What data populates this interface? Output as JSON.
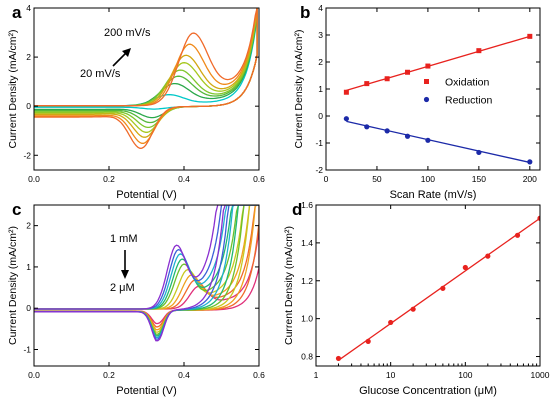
{
  "chart_data": [
    {
      "panel_label": "a",
      "type": "line",
      "xlabel": "Potential (V)",
      "ylabel": "Current Density (mA/cm²)",
      "xlim": [
        0.0,
        0.6
      ],
      "ylim": [
        -2.6,
        4.0
      ],
      "xticks": [
        "0.0",
        "0.2",
        "0.4",
        "0.6"
      ],
      "yticks": [
        "-2",
        "0",
        "2",
        "4"
      ],
      "annotations": {
        "top": "200 mV/s",
        "bottom": "20 mV/s"
      },
      "series": [
        {
          "color": "#00c8c8",
          "ox_peak": [
            0.36,
            0.45
          ],
          "red_peak": [
            0.32,
            -0.1
          ]
        },
        {
          "color": "#2aa84a",
          "ox_peak": [
            0.375,
            0.9
          ],
          "red_peak": [
            0.315,
            -0.45
          ]
        },
        {
          "color": "#55b83a",
          "ox_peak": [
            0.385,
            1.2
          ],
          "red_peak": [
            0.31,
            -0.65
          ]
        },
        {
          "color": "#7fc62a",
          "ox_peak": [
            0.39,
            1.45
          ],
          "red_peak": [
            0.305,
            -0.85
          ]
        },
        {
          "color": "#a6c81e",
          "ox_peak": [
            0.4,
            1.75
          ],
          "red_peak": [
            0.3,
            -1.05
          ]
        },
        {
          "color": "#d1a812",
          "ox_peak": [
            0.405,
            2.05
          ],
          "red_peak": [
            0.295,
            -1.25
          ]
        },
        {
          "color": "#f08a1a",
          "ox_peak": [
            0.415,
            2.5
          ],
          "red_peak": [
            0.29,
            -1.5
          ]
        },
        {
          "color": "#f06a2a",
          "ox_peak": [
            0.425,
            2.95
          ],
          "red_peak": [
            0.285,
            -1.7
          ]
        }
      ]
    },
    {
      "panel_label": "b",
      "type": "scatter",
      "xlabel": "Scan Rate (mV/s)",
      "ylabel": "Current Density (mA/cm²)",
      "xlim": [
        0,
        210
      ],
      "ylim": [
        -2.0,
        4.0
      ],
      "xticks": [
        "0",
        "50",
        "100",
        "150",
        "200"
      ],
      "yticks": [
        "-2",
        "-1",
        "0",
        "1",
        "2",
        "3",
        "4"
      ],
      "legend_position": "middle-right",
      "series": [
        {
          "name": "Oxidation",
          "color": "#e8221e",
          "marker": "square",
          "x": [
            20,
            40,
            60,
            80,
            100,
            150,
            200
          ],
          "y": [
            0.88,
            1.2,
            1.38,
            1.62,
            1.85,
            2.42,
            2.95
          ],
          "fit": [
            [
              20,
              0.95
            ],
            [
              200,
              2.95
            ]
          ]
        },
        {
          "name": "Reduction",
          "color": "#1c2aa8",
          "marker": "circle",
          "x": [
            20,
            40,
            60,
            80,
            100,
            150,
            200
          ],
          "y": [
            -0.1,
            -0.4,
            -0.55,
            -0.75,
            -0.9,
            -1.35,
            -1.7
          ],
          "fit": [
            [
              20,
              -0.2
            ],
            [
              200,
              -1.72
            ]
          ]
        }
      ]
    },
    {
      "panel_label": "c",
      "type": "line",
      "xlabel": "Potential (V)",
      "ylabel": "Current Density (mA/cm²)",
      "xlim": [
        0.0,
        0.6
      ],
      "ylim": [
        -1.4,
        2.5
      ],
      "xticks": [
        "0.0",
        "0.2",
        "0.4",
        "0.6"
      ],
      "yticks": [
        "-1",
        "0",
        "1",
        "2"
      ],
      "annotations": {
        "top": "1 mM",
        "bottom": "2 μM"
      },
      "series": [
        {
          "color": "#e0307a",
          "ox_peak": [
            0.44,
            0.55
          ],
          "red_peak": [
            0.33,
            -0.32
          ]
        },
        {
          "color": "#f06a2a",
          "ox_peak": [
            0.43,
            0.7
          ],
          "red_peak": [
            0.33,
            -0.4
          ]
        },
        {
          "color": "#f0a020",
          "ox_peak": [
            0.42,
            0.82
          ],
          "red_peak": [
            0.33,
            -0.47
          ]
        },
        {
          "color": "#c8c81e",
          "ox_peak": [
            0.41,
            0.95
          ],
          "red_peak": [
            0.33,
            -0.53
          ]
        },
        {
          "color": "#6cc02a",
          "ox_peak": [
            0.4,
            1.08
          ],
          "red_peak": [
            0.33,
            -0.58
          ]
        },
        {
          "color": "#20b870",
          "ox_peak": [
            0.395,
            1.2
          ],
          "red_peak": [
            0.33,
            -0.62
          ]
        },
        {
          "color": "#20b0d0",
          "ox_peak": [
            0.39,
            1.32
          ],
          "red_peak": [
            0.33,
            -0.66
          ]
        },
        {
          "color": "#3a60d8",
          "ox_peak": [
            0.385,
            1.42
          ],
          "red_peak": [
            0.33,
            -0.7
          ]
        },
        {
          "color": "#8a30d0",
          "ox_peak": [
            0.38,
            1.52
          ],
          "red_peak": [
            0.33,
            -0.74
          ]
        }
      ]
    },
    {
      "panel_label": "d",
      "type": "scatter",
      "xlabel": "Glucose Concentration (μM)",
      "ylabel": "Current Density (mA/cm²)",
      "xscale": "log",
      "xlim": [
        1,
        1000
      ],
      "ylim": [
        0.75,
        1.6
      ],
      "xticks": [
        "1",
        "10",
        "100",
        "1000"
      ],
      "yticks": [
        "0.8",
        "1.0",
        "1.2",
        "1.4",
        "1.6"
      ],
      "series": [
        {
          "color": "#e8221e",
          "marker": "circle",
          "x": [
            2,
            5,
            10,
            20,
            50,
            100,
            200,
            500,
            1000
          ],
          "y": [
            0.79,
            0.88,
            0.98,
            1.05,
            1.16,
            1.27,
            1.33,
            1.44,
            1.53
          ],
          "fit": [
            [
              2,
              0.78
            ],
            [
              1000,
              1.53
            ]
          ]
        }
      ]
    }
  ]
}
